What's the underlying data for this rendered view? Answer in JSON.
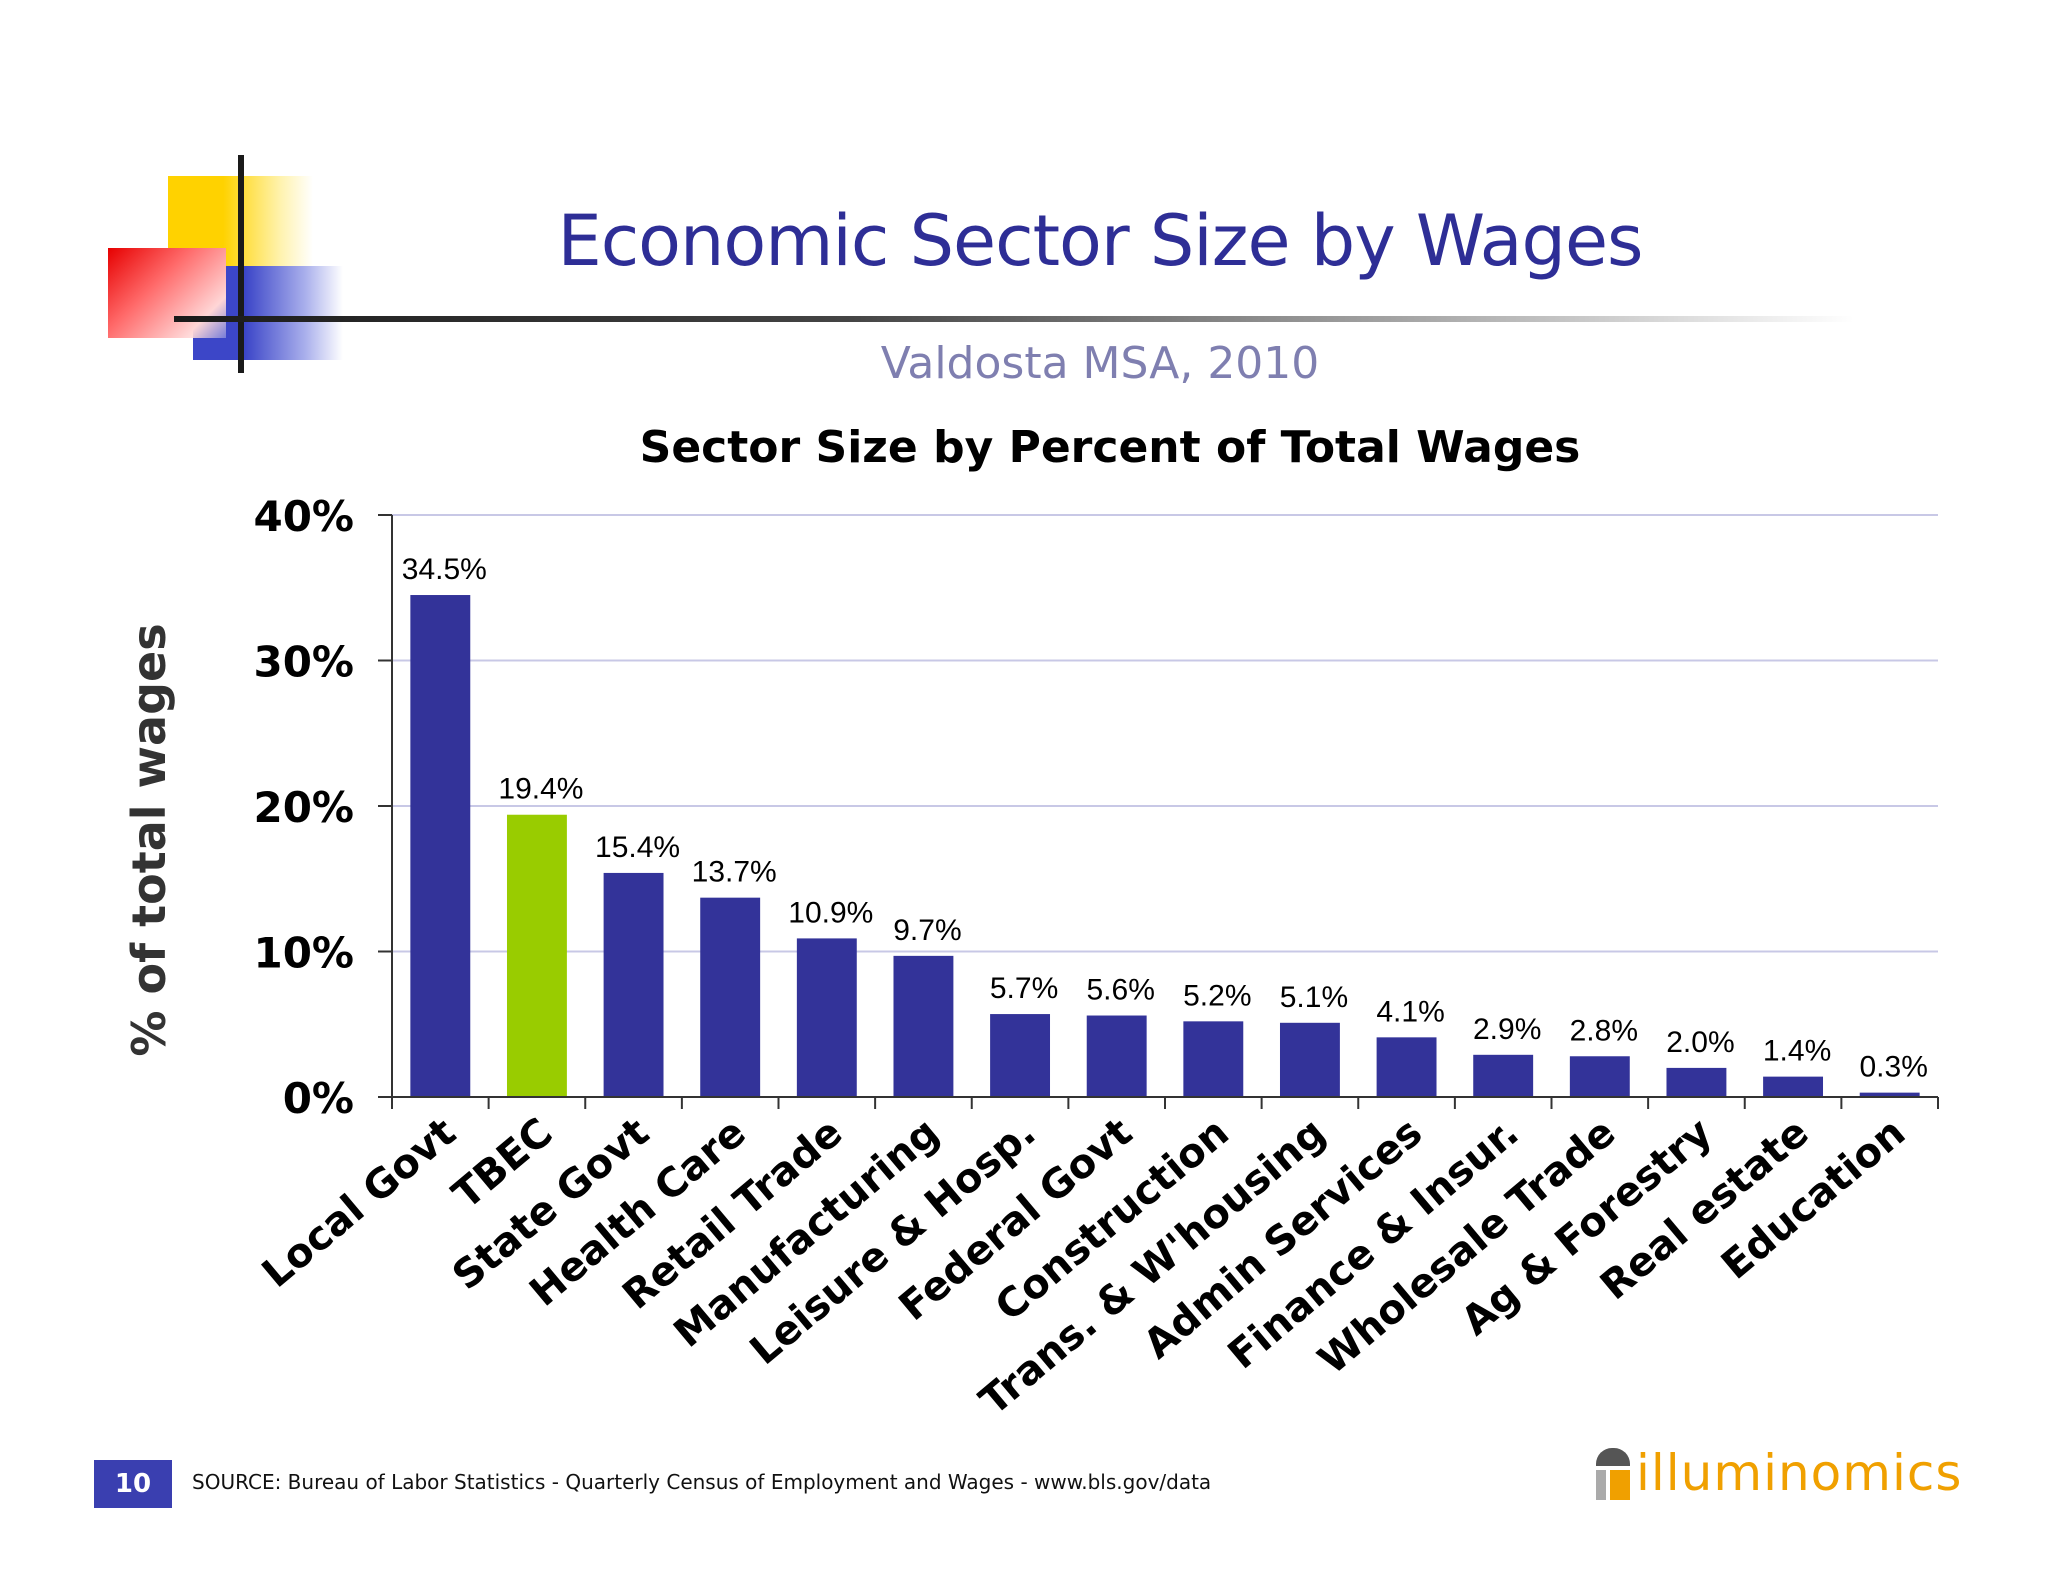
{
  "slide": {
    "title": "Economic Sector Size by Wages",
    "subtitle": "Valdosta MSA, 2010",
    "page_number": "10",
    "source": "SOURCE:  Bureau of Labor Statistics - Quarterly Census of Employment and Wages - www.bls.gov/data",
    "logo_text": "illuminomics",
    "colors": {
      "title": "#2e2e96",
      "subtitle": "#7f7fb0",
      "logo": "#f0a000",
      "footer_box": "#3a3fb0"
    }
  },
  "chart_data": {
    "type": "bar",
    "title": "Sector Size by Percent of Total Wages",
    "xlabel": "",
    "ylabel": "% of total wages",
    "ylim": [
      0,
      40
    ],
    "yticks": [
      0,
      10,
      20,
      30,
      40
    ],
    "ytick_labels": [
      "0%",
      "10%",
      "20%",
      "30%",
      "40%"
    ],
    "grid": true,
    "legend": "none",
    "categories": [
      "Local Govt",
      "TBEC",
      "State Govt",
      "Health Care",
      "Retail Trade",
      "Manufacturing",
      "Leisure & Hosp.",
      "Federal Govt",
      "Construction",
      "Trans. & W'housing",
      "Admin Services",
      "Finance & Insur.",
      "Wholesale Trade",
      "Ag & Forestry",
      "Real estate",
      "Education"
    ],
    "values": [
      34.5,
      19.4,
      15.4,
      13.7,
      10.9,
      9.7,
      5.7,
      5.6,
      5.2,
      5.1,
      4.1,
      2.9,
      2.8,
      2.0,
      1.4,
      0.3
    ],
    "data_labels": [
      "34.5%",
      "19.4%",
      "15.4%",
      "13.7%",
      "10.9%",
      "9.7%",
      "5.7%",
      "5.6%",
      "5.2%",
      "5.1%",
      "4.1%",
      "2.9%",
      "2.8%",
      "2.0%",
      "1.4%",
      "0.3%"
    ],
    "colors": {
      "default": "#333399",
      "highlight": "#99cc00"
    },
    "highlight_category": "TBEC"
  }
}
